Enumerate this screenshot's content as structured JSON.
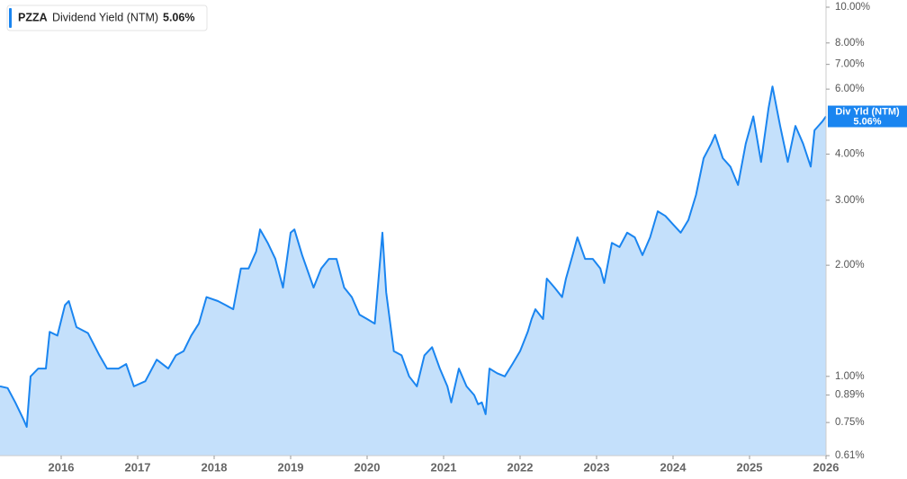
{
  "chart_data": {
    "type": "area",
    "ticker": "PZZA",
    "badge_label": "Div Yld (NTM)",
    "current": {
      "value": 5.06,
      "label": "5.06%"
    },
    "log_scale": true,
    "fill_color": "#c4e0fb",
    "x": [
      2015.2,
      2015.3,
      2015.4,
      2015.5,
      2015.55,
      2015.6,
      2015.7,
      2015.8,
      2015.85,
      2015.95,
      2016.05,
      2016.1,
      2016.2,
      2016.35,
      2016.5,
      2016.6,
      2016.75,
      2016.85,
      2016.95,
      2017.1,
      2017.25,
      2017.4,
      2017.5,
      2017.6,
      2017.7,
      2017.8,
      2017.9,
      2018.05,
      2018.15,
      2018.25,
      2018.35,
      2018.45,
      2018.55,
      2018.6,
      2018.7,
      2018.8,
      2018.9,
      2019.0,
      2019.05,
      2019.15,
      2019.3,
      2019.4,
      2019.5,
      2019.6,
      2019.7,
      2019.8,
      2019.9,
      2020.0,
      2020.1,
      2020.2,
      2020.25,
      2020.35,
      2020.45,
      2020.55,
      2020.65,
      2020.75,
      2020.85,
      2020.95,
      2021.05,
      2021.1,
      2021.2,
      2021.3,
      2021.4,
      2021.45,
      2021.5,
      2021.55,
      2021.6,
      2021.7,
      2021.8,
      2021.9,
      2022.0,
      2022.1,
      2022.15,
      2022.2,
      2022.3,
      2022.35,
      2022.45,
      2022.55,
      2022.6,
      2022.7,
      2022.75,
      2022.85,
      2022.95,
      2023.05,
      2023.1,
      2023.2,
      2023.3,
      2023.4,
      2023.5,
      2023.6,
      2023.7,
      2023.8,
      2023.9,
      2024.0,
      2024.1,
      2024.2,
      2024.3,
      2024.4,
      2024.5,
      2024.55,
      2024.65,
      2024.75,
      2024.85,
      2024.95,
      2025.05,
      2025.15,
      2025.25,
      2025.3,
      2025.4,
      2025.5,
      2025.6,
      2025.7,
      2025.8,
      2025.85,
      2025.9,
      2025.95,
      2026.0
    ],
    "series": [
      {
        "name": "Dividend Yield (NTM)",
        "color": "#1a85f0",
        "values": [
          0.94,
          0.93,
          0.85,
          0.77,
          0.73,
          1.0,
          1.05,
          1.05,
          1.32,
          1.29,
          1.56,
          1.6,
          1.36,
          1.31,
          1.14,
          1.05,
          1.05,
          1.08,
          0.94,
          0.97,
          1.11,
          1.05,
          1.14,
          1.17,
          1.29,
          1.39,
          1.64,
          1.6,
          1.56,
          1.52,
          1.96,
          1.96,
          2.18,
          2.5,
          2.3,
          2.08,
          1.74,
          2.45,
          2.5,
          2.13,
          1.74,
          1.96,
          2.08,
          2.08,
          1.74,
          1.64,
          1.47,
          1.43,
          1.39,
          2.45,
          1.69,
          1.17,
          1.14,
          1.0,
          0.94,
          1.14,
          1.2,
          1.05,
          0.94,
          0.85,
          1.05,
          0.94,
          0.89,
          0.84,
          0.85,
          0.79,
          1.05,
          1.02,
          1.0,
          1.08,
          1.17,
          1.32,
          1.43,
          1.52,
          1.43,
          1.84,
          1.74,
          1.64,
          1.84,
          2.18,
          2.38,
          2.08,
          2.08,
          1.96,
          1.79,
          2.3,
          2.24,
          2.45,
          2.38,
          2.13,
          2.38,
          2.8,
          2.72,
          2.58,
          2.45,
          2.65,
          3.1,
          3.9,
          4.27,
          4.51,
          3.9,
          3.7,
          3.3,
          4.27,
          5.06,
          3.81,
          5.34,
          6.1,
          4.77,
          3.81,
          4.77,
          4.27,
          3.7,
          4.64,
          4.77,
          4.9,
          5.06
        ]
      }
    ],
    "xlim": [
      2015.2,
      2026
    ],
    "xticks": [
      2016,
      2017,
      2018,
      2019,
      2020,
      2021,
      2022,
      2023,
      2024,
      2025,
      2026
    ],
    "ylim": [
      0.61,
      10
    ],
    "yticks": [
      {
        "value": 10,
        "label": "10.00%"
      },
      {
        "value": 8,
        "label": "8.00%"
      },
      {
        "value": 7,
        "label": "7.00%"
      },
      {
        "value": 6,
        "label": "6.00%"
      },
      {
        "value": 4,
        "label": "4.00%"
      },
      {
        "value": 3,
        "label": "3.00%"
      },
      {
        "value": 2,
        "label": "2.00%"
      },
      {
        "value": 1,
        "label": "1.00%"
      },
      {
        "value": 0.89,
        "label": "0.89%"
      },
      {
        "value": 0.75,
        "label": "0.75%"
      },
      {
        "value": 0.61,
        "label": "0.61%"
      }
    ]
  }
}
